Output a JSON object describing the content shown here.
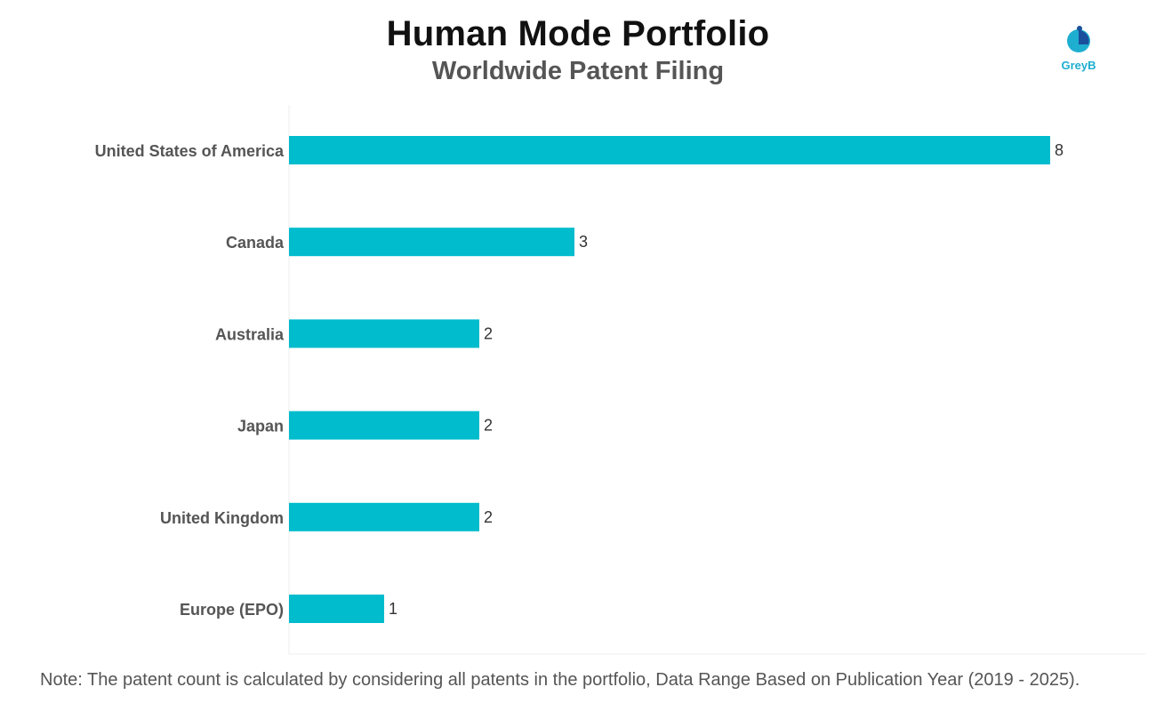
{
  "chart_data": {
    "type": "bar",
    "orientation": "horizontal",
    "title": "Human Mode Portfolio",
    "subtitle": "Worldwide Patent Filing",
    "categories": [
      "United States of America",
      "Canada",
      "Australia",
      "Japan",
      "United Kingdom",
      "Europe (EPO)"
    ],
    "values": [
      8,
      3,
      2,
      2,
      2,
      1
    ],
    "xlim": [
      0,
      8
    ],
    "grid": false,
    "bar_color": "#00bccd",
    "data_labels": true
  },
  "branding": {
    "logo_text": "GreyB",
    "logo_color": "#1eaed0"
  },
  "footer": {
    "note": "Note: The patent count is calculated by considering all patents in the portfolio, Data Range Based on Publication Year (2019 - 2025)."
  }
}
